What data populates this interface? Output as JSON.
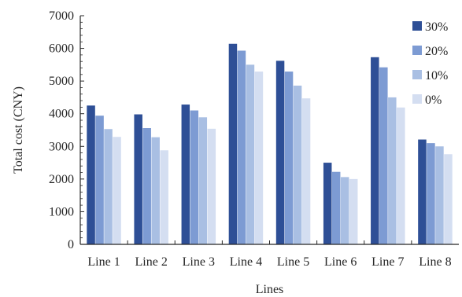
{
  "chart_data": {
    "type": "bar",
    "categories": [
      "Line 1",
      "Line 2",
      "Line 3",
      "Line 4",
      "Line 5",
      "Line 6",
      "Line 7",
      "Line 8"
    ],
    "series": [
      {
        "name": "30%",
        "color": "#2e4f96",
        "values": [
          4250,
          3980,
          4280,
          6140,
          5620,
          2500,
          5730,
          3210
        ]
      },
      {
        "name": "20%",
        "color": "#7d9bd3",
        "values": [
          3940,
          3560,
          4100,
          5930,
          5290,
          2220,
          5420,
          3100
        ]
      },
      {
        "name": "10%",
        "color": "#a9bfe3",
        "values": [
          3530,
          3280,
          3890,
          5500,
          4860,
          2060,
          4500,
          3000
        ]
      },
      {
        "name": "0%",
        "color": "#d4def1",
        "values": [
          3290,
          2880,
          3540,
          5290,
          4470,
          2000,
          4190,
          2760
        ]
      }
    ],
    "xlabel": "Lines",
    "ylabel": "Total cost (CNY)",
    "ylim": [
      0,
      7000
    ],
    "yticks": [
      0,
      1000,
      2000,
      3000,
      4000,
      5000,
      6000,
      7000
    ],
    "grid": false,
    "legend_position": "top-right"
  }
}
